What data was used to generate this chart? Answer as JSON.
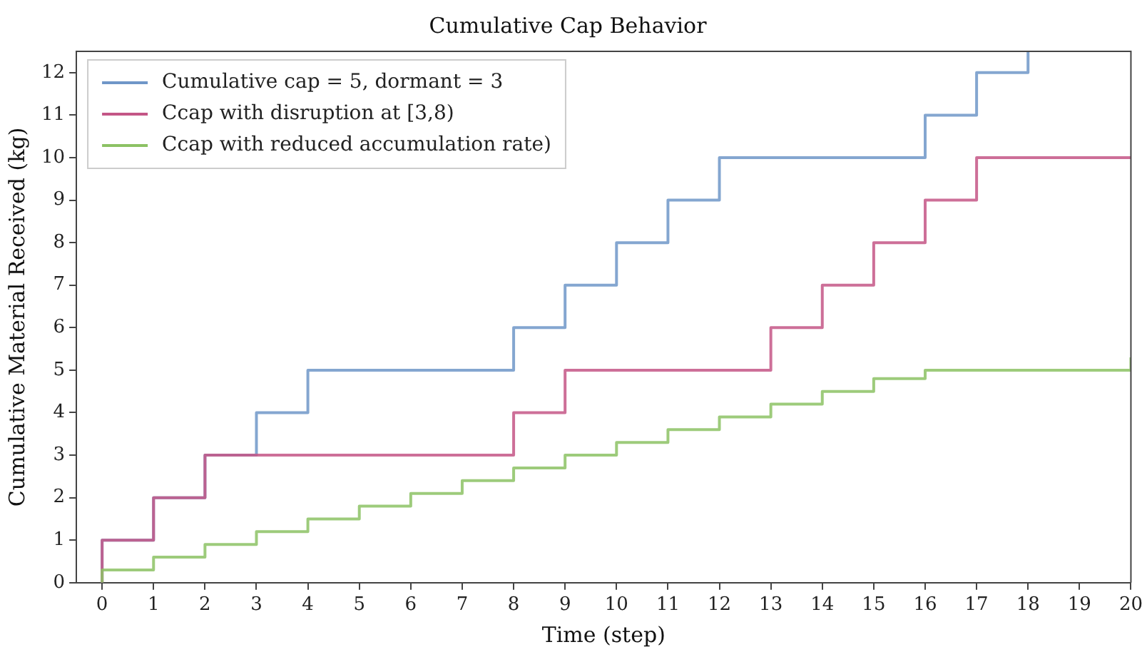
{
  "chart_data": {
    "type": "step",
    "title": "Cumulative Cap Behavior",
    "xlabel": "Time (step)",
    "ylabel": "Cumulative Material Received (kg)",
    "xlim": [
      -0.5,
      20
    ],
    "xticks": [
      0,
      1,
      2,
      3,
      4,
      5,
      6,
      7,
      8,
      9,
      10,
      11,
      12,
      13,
      14,
      15,
      16,
      17,
      18,
      19,
      20
    ],
    "ylim": [
      0,
      12.5
    ],
    "yticks": [
      0,
      1,
      2,
      3,
      4,
      5,
      6,
      7,
      8,
      9,
      10,
      11,
      12
    ],
    "grid": false,
    "legend": "top left",
    "marker": "none",
    "line_style": "solid",
    "series": [
      {
        "name": "Cumulative cap = 5, dormant = 3",
        "color": "#6f96c8",
        "x": [
          0,
          0,
          1,
          2,
          3,
          4,
          5,
          6,
          7,
          8,
          9,
          10,
          11,
          12,
          13,
          14,
          15,
          16,
          17,
          18
        ],
        "values": [
          0,
          1,
          2,
          3,
          4,
          5,
          5,
          5,
          5,
          6,
          7,
          8,
          9,
          10,
          10,
          10,
          10,
          11,
          12,
          12.5
        ]
      },
      {
        "name": "Ccap with disruption at [3,8)",
        "color": "#c45686",
        "x": [
          0,
          0,
          1,
          2,
          3,
          4,
          5,
          6,
          7,
          8,
          9,
          10,
          11,
          12,
          13,
          14,
          15,
          16,
          17,
          18,
          19,
          20
        ],
        "values": [
          0,
          1,
          2,
          3,
          3,
          3,
          3,
          3,
          3,
          4,
          5,
          5,
          5,
          5,
          6,
          7,
          8,
          9,
          10,
          10,
          10,
          10
        ]
      },
      {
        "name": "Ccap with reduced accumulation rate)",
        "color": "#8cc264",
        "x": [
          0,
          0,
          1,
          2,
          3,
          4,
          5,
          6,
          7,
          8,
          9,
          10,
          11,
          12,
          13,
          14,
          15,
          16,
          17,
          18,
          19,
          20,
          20
        ],
        "values": [
          0,
          0.3,
          0.6,
          0.9,
          1.2,
          1.5,
          1.8,
          2.1,
          2.4,
          2.7,
          3.0,
          3.3,
          3.6,
          3.9,
          4.2,
          4.5,
          4.8,
          5,
          5,
          5,
          5,
          5,
          5.3
        ]
      }
    ]
  }
}
